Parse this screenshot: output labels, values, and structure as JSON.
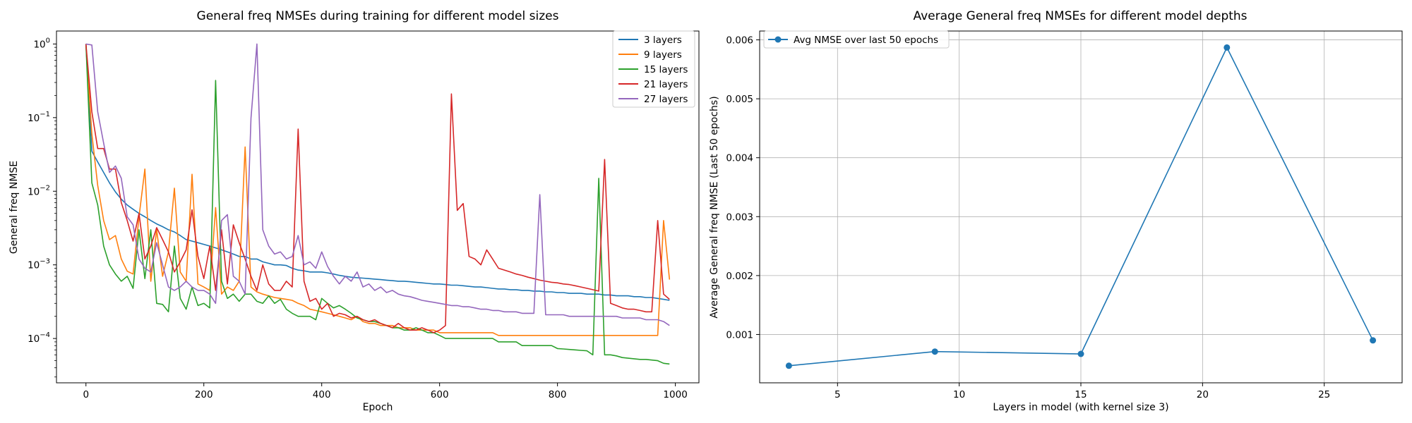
{
  "chart_data": [
    {
      "type": "line",
      "title": "General freq NMSEs during training for different model sizes",
      "xlabel": "Epoch",
      "ylabel": "General freq NMSE",
      "yscale": "log",
      "xlim": [
        -50,
        1040
      ],
      "ylim": [
        2.5e-05,
        1.5
      ],
      "xticks": [
        0,
        200,
        400,
        600,
        800,
        1000
      ],
      "xtick_labels": [
        "0",
        "200",
        "400",
        "600",
        "800",
        "1000"
      ],
      "yticks": [
        1,
        0.1,
        0.01,
        0.001,
        0.0001
      ],
      "ytick_labels": [
        {
          "base": "10",
          "exp": "0"
        },
        {
          "base": "10",
          "exp": "−1"
        },
        {
          "base": "10",
          "exp": "−2"
        },
        {
          "base": "10",
          "exp": "−3"
        },
        {
          "base": "10",
          "exp": "−4"
        }
      ],
      "grid": false,
      "legend_position": "top-right",
      "x": [
        0,
        10,
        20,
        30,
        40,
        50,
        60,
        70,
        80,
        90,
        100,
        110,
        120,
        130,
        140,
        150,
        160,
        170,
        180,
        190,
        200,
        210,
        220,
        230,
        240,
        250,
        260,
        270,
        280,
        290,
        300,
        310,
        320,
        330,
        340,
        350,
        360,
        370,
        380,
        390,
        400,
        410,
        420,
        430,
        440,
        450,
        460,
        470,
        480,
        490,
        500,
        510,
        520,
        530,
        540,
        550,
        560,
        570,
        580,
        590,
        600,
        610,
        620,
        630,
        640,
        650,
        660,
        670,
        680,
        690,
        700,
        710,
        720,
        730,
        740,
        750,
        760,
        770,
        780,
        790,
        800,
        810,
        820,
        830,
        840,
        850,
        860,
        870,
        880,
        890,
        900,
        910,
        920,
        930,
        940,
        950,
        960,
        970,
        980,
        990
      ],
      "series": [
        {
          "name": "3 layers",
          "color": "#1f77b4",
          "values": [
            1.0,
            0.035,
            0.025,
            0.018,
            0.013,
            0.0098,
            0.0078,
            0.0065,
            0.0057,
            0.005,
            0.0045,
            0.004,
            0.0036,
            0.0033,
            0.003,
            0.0028,
            0.0025,
            0.0022,
            0.0021,
            0.002,
            0.0019,
            0.0018,
            0.0017,
            0.0016,
            0.0015,
            0.0014,
            0.0013,
            0.0013,
            0.0012,
            0.0012,
            0.0011,
            0.00105,
            0.001,
            0.001,
            0.00098,
            0.0009,
            0.00085,
            0.00083,
            0.0008,
            0.0008,
            0.0008,
            0.00078,
            0.00075,
            0.00072,
            0.0007,
            0.00068,
            0.00067,
            0.00066,
            0.00065,
            0.00064,
            0.00063,
            0.00062,
            0.00061,
            0.0006,
            0.0006,
            0.00059,
            0.00058,
            0.00057,
            0.00056,
            0.00055,
            0.00055,
            0.00054,
            0.00053,
            0.00053,
            0.00052,
            0.00051,
            0.0005,
            0.0005,
            0.00049,
            0.00048,
            0.00047,
            0.00047,
            0.00046,
            0.00046,
            0.00045,
            0.00045,
            0.00044,
            0.00044,
            0.00043,
            0.00043,
            0.00042,
            0.00042,
            0.00041,
            0.00041,
            0.00041,
            0.0004,
            0.0004,
            0.0004,
            0.00039,
            0.00039,
            0.00038,
            0.00038,
            0.00038,
            0.00037,
            0.00037,
            0.00036,
            0.00036,
            0.00035,
            0.00034,
            0.00033
          ]
        },
        {
          "name": "9 layers",
          "color": "#ff7f0e",
          "values": [
            1.0,
            0.06,
            0.012,
            0.004,
            0.0022,
            0.0025,
            0.0012,
            0.00082,
            0.00075,
            0.0045,
            0.02,
            0.0006,
            0.003,
            0.0007,
            0.0015,
            0.011,
            0.0008,
            0.0006,
            0.017,
            0.00055,
            0.0005,
            0.00045,
            0.006,
            0.0004,
            0.0005,
            0.00045,
            0.0006,
            0.04,
            0.0005,
            0.00043,
            0.0004,
            0.00038,
            0.00036,
            0.00035,
            0.00034,
            0.00033,
            0.0003,
            0.00028,
            0.00025,
            0.00024,
            0.00023,
            0.00022,
            0.00021,
            0.0002,
            0.00019,
            0.00018,
            0.0002,
            0.00017,
            0.00016,
            0.00016,
            0.00015,
            0.00015,
            0.00015,
            0.00014,
            0.00014,
            0.00014,
            0.00013,
            0.00013,
            0.00013,
            0.00013,
            0.00012,
            0.00012,
            0.00012,
            0.00012,
            0.00012,
            0.00012,
            0.00012,
            0.00012,
            0.00012,
            0.00012,
            0.00011,
            0.00011,
            0.00011,
            0.00011,
            0.00011,
            0.00011,
            0.00011,
            0.00011,
            0.00011,
            0.00011,
            0.00011,
            0.00011,
            0.00011,
            0.00011,
            0.00011,
            0.00011,
            0.00011,
            0.00011,
            0.00011,
            0.00011,
            0.00011,
            0.00011,
            0.00011,
            0.00011,
            0.00011,
            0.00011,
            0.00011,
            0.00011,
            0.004,
            0.00063
          ]
        },
        {
          "name": "15 layers",
          "color": "#2ca02c",
          "values": [
            1.0,
            0.013,
            0.0065,
            0.0018,
            0.001,
            0.00075,
            0.0006,
            0.0007,
            0.00048,
            0.003,
            0.00065,
            0.003,
            0.0003,
            0.00029,
            0.00023,
            0.0018,
            0.00035,
            0.00025,
            0.0005,
            0.00028,
            0.0003,
            0.00026,
            0.32,
            0.0006,
            0.00035,
            0.0004,
            0.00032,
            0.0004,
            0.0004,
            0.00032,
            0.0003,
            0.00038,
            0.0003,
            0.00034,
            0.00025,
            0.00022,
            0.0002,
            0.0002,
            0.0002,
            0.00018,
            0.00035,
            0.0003,
            0.00026,
            0.00028,
            0.00025,
            0.00022,
            0.00019,
            0.00018,
            0.00017,
            0.00017,
            0.00016,
            0.00015,
            0.00014,
            0.00014,
            0.00013,
            0.00013,
            0.00014,
            0.00013,
            0.00012,
            0.00012,
            0.00011,
            0.0001,
            0.0001,
            0.0001,
            0.0001,
            0.0001,
            0.0001,
            0.0001,
            0.0001,
            0.0001,
            9e-05,
            9e-05,
            9e-05,
            9e-05,
            8e-05,
            8e-05,
            8e-05,
            8e-05,
            8e-05,
            8e-05,
            7.3e-05,
            7.2e-05,
            7.1e-05,
            7e-05,
            6.9e-05,
            6.8e-05,
            6e-05,
            0.015,
            6e-05,
            6e-05,
            5.8e-05,
            5.5e-05,
            5.4e-05,
            5.3e-05,
            5.2e-05,
            5.2e-05,
            5.1e-05,
            5e-05,
            4.6e-05,
            4.5e-05
          ]
        },
        {
          "name": "21 layers",
          "color": "#d62728",
          "values": [
            1.0,
            0.12,
            0.038,
            0.038,
            0.02,
            0.02,
            0.007,
            0.004,
            0.0021,
            0.005,
            0.0012,
            0.0018,
            0.0032,
            0.0022,
            0.0015,
            0.0008,
            0.0011,
            0.0016,
            0.0056,
            0.0013,
            0.00065,
            0.0018,
            0.00045,
            0.003,
            0.00055,
            0.0035,
            0.002,
            0.0012,
            0.0007,
            0.00045,
            0.001,
            0.00055,
            0.00045,
            0.00045,
            0.0006,
            0.0005,
            0.07,
            0.0006,
            0.00032,
            0.00035,
            0.00025,
            0.0003,
            0.0002,
            0.00022,
            0.00021,
            0.00019,
            0.0002,
            0.00018,
            0.00017,
            0.00018,
            0.00016,
            0.00015,
            0.00014,
            0.00016,
            0.00014,
            0.00013,
            0.00013,
            0.00014,
            0.00013,
            0.00012,
            0.00013,
            0.00015,
            0.21,
            0.0055,
            0.0068,
            0.0013,
            0.0012,
            0.001,
            0.0016,
            0.0012,
            0.0009,
            0.00085,
            0.0008,
            0.00075,
            0.00072,
            0.00068,
            0.00065,
            0.00062,
            0.0006,
            0.00058,
            0.00057,
            0.00055,
            0.00054,
            0.00052,
            0.0005,
            0.00048,
            0.00046,
            0.00044,
            0.027,
            0.0003,
            0.00028,
            0.00026,
            0.00025,
            0.00025,
            0.00024,
            0.00023,
            0.00023,
            0.004,
            0.0004,
            0.00034
          ]
        },
        {
          "name": "27 layers",
          "color": "#9467bd",
          "values": [
            1.0,
            0.97,
            0.12,
            0.045,
            0.018,
            0.022,
            0.015,
            0.0045,
            0.0035,
            0.0012,
            0.0009,
            0.0008,
            0.002,
            0.001,
            0.0005,
            0.00045,
            0.0005,
            0.0006,
            0.0005,
            0.00045,
            0.00045,
            0.0004,
            0.0003,
            0.004,
            0.0048,
            0.0007,
            0.0006,
            0.0004,
            0.098,
            1.0,
            0.003,
            0.0018,
            0.0014,
            0.0015,
            0.0012,
            0.0013,
            0.0025,
            0.001,
            0.0011,
            0.0009,
            0.0015,
            0.00095,
            0.0007,
            0.00055,
            0.0007,
            0.0006,
            0.0008,
            0.0005,
            0.00055,
            0.00045,
            0.0005,
            0.00042,
            0.00045,
            0.0004,
            0.00038,
            0.00037,
            0.00035,
            0.00033,
            0.00032,
            0.00031,
            0.0003,
            0.00029,
            0.00028,
            0.00028,
            0.00027,
            0.00027,
            0.00026,
            0.00025,
            0.00025,
            0.00024,
            0.00024,
            0.00023,
            0.00023,
            0.00023,
            0.00022,
            0.00022,
            0.00022,
            0.009,
            0.00021,
            0.00021,
            0.00021,
            0.00021,
            0.0002,
            0.0002,
            0.0002,
            0.0002,
            0.0002,
            0.0002,
            0.0002,
            0.0002,
            0.0002,
            0.00019,
            0.00019,
            0.00019,
            0.00019,
            0.00018,
            0.00018,
            0.00018,
            0.00017,
            0.00015
          ]
        }
      ]
    },
    {
      "type": "line",
      "title": "Average General freq NMSEs for different model depths",
      "xlabel": "Layers in model (with kernel size 3)",
      "ylabel": "Average General freq NMSE (Last 50 epochs)",
      "xlim": [
        1.8,
        28.2
      ],
      "ylim": [
        0.00018,
        0.00615
      ],
      "xticks": [
        5,
        10,
        15,
        20,
        25
      ],
      "xtick_labels": [
        "5",
        "10",
        "15",
        "20",
        "25"
      ],
      "yticks": [
        0.001,
        0.002,
        0.003,
        0.004,
        0.005,
        0.006
      ],
      "ytick_labels": [
        "0.001",
        "0.002",
        "0.003",
        "0.004",
        "0.005",
        "0.006"
      ],
      "grid": true,
      "legend_position": "top-left",
      "markers": true,
      "series": [
        {
          "name": "Avg NMSE over last 50 epochs",
          "color": "#1f77b4",
          "x": [
            3,
            9,
            15,
            21,
            27
          ],
          "values": [
            0.00047,
            0.00071,
            0.00067,
            0.00587,
            0.0009
          ]
        }
      ]
    }
  ]
}
